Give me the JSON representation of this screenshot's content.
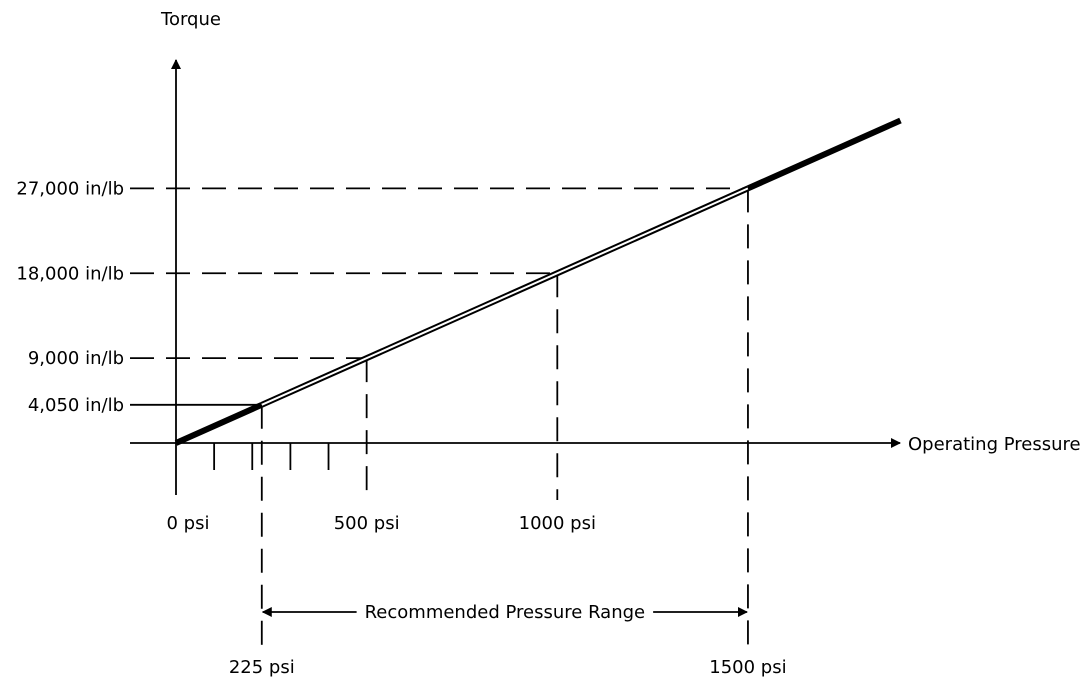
{
  "chart_data": {
    "type": "line",
    "title": "",
    "ylabel": "Torque",
    "xlabel": "Operating Pressure",
    "x_unit": "psi",
    "y_unit": "in/lb",
    "xlim": [
      0,
      1900
    ],
    "ylim": [
      0,
      34000
    ],
    "x_tick_values": [
      0,
      500,
      1000
    ],
    "x_tick_labels": [
      "0 psi",
      "500 psi",
      "1000 psi"
    ],
    "minor_x_ticks": [
      100,
      200,
      300,
      400
    ],
    "y_tick_values": [
      4050,
      9000,
      18000,
      27000
    ],
    "y_tick_labels": [
      "4,050 in/lb",
      "9,000 in/lb",
      "18,000 in/lb",
      "27,000 in/lb"
    ],
    "series": [
      {
        "x": [
          0,
          225,
          500,
          1000,
          1500,
          1900
        ],
        "y": [
          0,
          4050,
          9000,
          18000,
          27000,
          34200
        ]
      }
    ],
    "reference_points": [
      {
        "x": 225,
        "y": 4050,
        "line_style": "solid"
      },
      {
        "x": 500,
        "y": 9000,
        "line_style": "dashed"
      },
      {
        "x": 1000,
        "y": 18000,
        "line_style": "dashed"
      },
      {
        "x": 1500,
        "y": 27000,
        "line_style": "dashed"
      }
    ],
    "range": {
      "label": "Recommended Pressure Range",
      "from": 225,
      "to": 1500,
      "from_label": "225 psi",
      "to_label": "1500 psi"
    },
    "grid": false,
    "legend": "none"
  }
}
